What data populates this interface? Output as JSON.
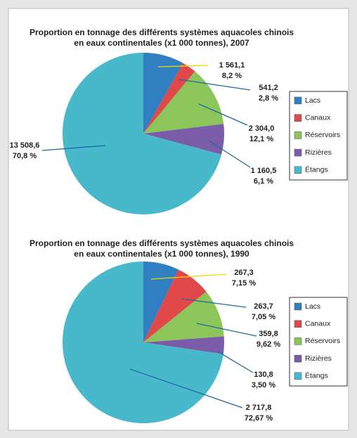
{
  "chart_data": [
    {
      "type": "pie",
      "title": [
        "Proportion en tonnage des différents systèmes aquacoles chinois",
        "en eaux continentales (x1 000 tonnes), 2007"
      ],
      "categories": [
        "Lacs",
        "Canaux",
        "Réservoirs",
        "Rizières",
        "Étangs"
      ],
      "colors": [
        "#2f7fc1",
        "#e0484a",
        "#8cc55a",
        "#7b5ca8",
        "#48b8cb"
      ],
      "values": [
        1561.1,
        541.2,
        2304.0,
        1160.5,
        13508.6
      ],
      "value_labels": [
        "1 561,1",
        "541,2",
        "2 304,0",
        "1 160,5",
        "13 508,6"
      ],
      "percent_labels": [
        "8,2 %",
        "2,8 %",
        "12,1 %",
        "6,1 %",
        "70,8 %"
      ]
    },
    {
      "type": "pie",
      "title": [
        "Proportion en tonnage des différents systèmes aquacoles chinois",
        "en eaux continentales (x1 000 tonnes), 1990"
      ],
      "categories": [
        "Lacs",
        "Canaux",
        "Réservoirs",
        "Rizières",
        "Étangs"
      ],
      "colors": [
        "#2f7fc1",
        "#e0484a",
        "#8cc55a",
        "#7b5ca8",
        "#48b8cb"
      ],
      "values": [
        267.3,
        263.7,
        359.8,
        130.8,
        2717.8
      ],
      "value_labels": [
        "267,3",
        "263,7",
        "359,8",
        "130,8",
        "2 717,8"
      ],
      "percent_labels": [
        "7,15 %",
        "7,05 %",
        "9,62 %",
        "3,50 %",
        "72,67 %"
      ]
    }
  ]
}
